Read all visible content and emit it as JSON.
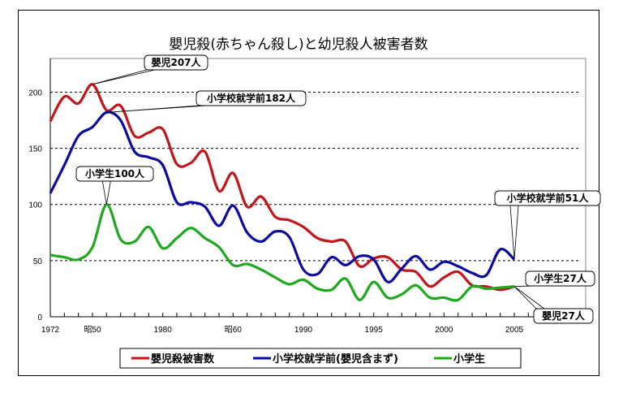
{
  "chart_data": {
    "type": "line",
    "title": "嬰児殺(赤ちゃん殺し)と幼児殺人被害者数",
    "xlabel": "",
    "ylabel": "",
    "x": [
      1972,
      1973,
      1974,
      1975,
      1976,
      1977,
      1978,
      1979,
      1980,
      1981,
      1982,
      1983,
      1984,
      1985,
      1986,
      1987,
      1988,
      1989,
      1990,
      1991,
      1992,
      1993,
      1994,
      1995,
      1996,
      1997,
      1998,
      1999,
      2000,
      2001,
      2002,
      2003,
      2004,
      2005
    ],
    "xlim": [
      1972,
      2007
    ],
    "ylim": [
      0,
      230
    ],
    "yticks": [
      0,
      50,
      100,
      150,
      200
    ],
    "xtick_labels": [
      {
        "x": 1972,
        "label": "1972"
      },
      {
        "x": 1975,
        "label": "昭50"
      },
      {
        "x": 1980,
        "label": "1980"
      },
      {
        "x": 1985,
        "label": "昭60"
      },
      {
        "x": 1990,
        "label": "1990"
      },
      {
        "x": 1995,
        "label": "1995"
      },
      {
        "x": 2000,
        "label": "2000"
      },
      {
        "x": 2005,
        "label": "2005"
      }
    ],
    "grid": "horizontal dashed",
    "legend_position": "bottom",
    "series": [
      {
        "name": "嬰児殺被害数",
        "color": "#c0171c",
        "values": [
          174,
          196,
          190,
          207,
          184,
          188,
          161,
          164,
          167,
          136,
          137,
          147,
          112,
          128,
          98,
          107,
          89,
          86,
          80,
          70,
          67,
          67,
          45,
          52,
          53,
          42,
          40,
          27,
          35,
          40,
          28,
          27,
          24,
          27
        ]
      },
      {
        "name": "小学校就学前(嬰児含まず)",
        "color": "#0a0aa0",
        "values": [
          110,
          135,
          161,
          169,
          182,
          175,
          147,
          142,
          135,
          102,
          102,
          98,
          81,
          99,
          75,
          67,
          76,
          71,
          42,
          38,
          53,
          46,
          54,
          51,
          31,
          43,
          54,
          42,
          49,
          45,
          39,
          37,
          60,
          51
        ]
      },
      {
        "name": "小学生",
        "color": "#1fa81f",
        "values": [
          55,
          53,
          51,
          62,
          100,
          69,
          67,
          80,
          61,
          70,
          79,
          70,
          62,
          46,
          47,
          42,
          35,
          29,
          33,
          25,
          24,
          34,
          15,
          31,
          17,
          20,
          28,
          17,
          17,
          15,
          27,
          25,
          26,
          27
        ]
      }
    ],
    "annotations": [
      {
        "text": "嬰児207人",
        "x": 1975,
        "y": 207
      },
      {
        "text": "小学校就学前182人",
        "x": 1976,
        "y": 182
      },
      {
        "text": "小学生100人",
        "x": 1976,
        "y": 100
      },
      {
        "text": "小学校就学前51人",
        "x": 2005,
        "y": 51
      },
      {
        "text": "小学生27人",
        "x": 2005,
        "y": 27
      },
      {
        "text": "嬰児27人",
        "x": 2005,
        "y": 27
      }
    ]
  }
}
